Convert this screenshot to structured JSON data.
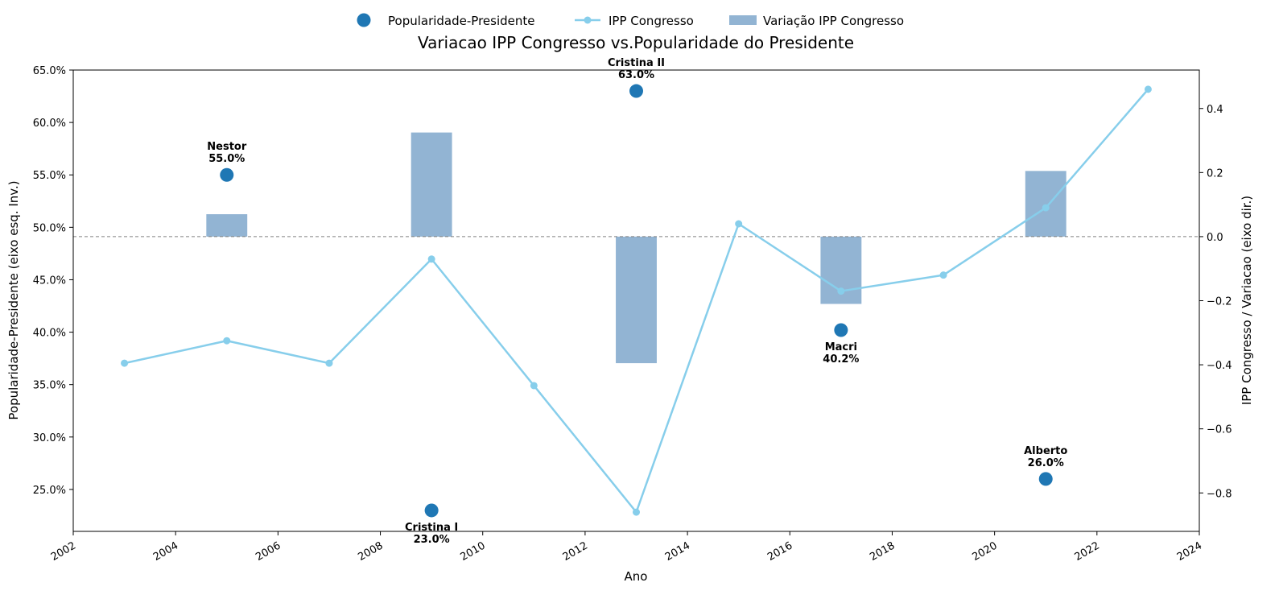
{
  "chart_data": {
    "type": "bar",
    "title": "Variacao IPP Congresso vs.Popularidade do Presidente",
    "xlabel": "Ano",
    "ylabel_left": "Popularidade-Presidente (eixo esq. Inv.)",
    "ylabel_right": "IPP Congresso / Variacao (eixo dir.)",
    "xlim": [
      2002,
      2024
    ],
    "ylim_left": [
      21.0,
      65.0
    ],
    "ylim_right": [
      -0.92,
      0.52
    ],
    "x_ticks": [
      {
        "value": 2002,
        "label": "2002"
      },
      {
        "value": 2004,
        "label": "2004"
      },
      {
        "value": 2006,
        "label": "2006"
      },
      {
        "value": 2008,
        "label": "2008"
      },
      {
        "value": 2010,
        "label": "2010"
      },
      {
        "value": 2012,
        "label": "2012"
      },
      {
        "value": 2014,
        "label": "2014"
      },
      {
        "value": 2016,
        "label": "2016"
      },
      {
        "value": 2018,
        "label": "2018"
      },
      {
        "value": 2020,
        "label": "2020"
      },
      {
        "value": 2022,
        "label": "2022"
      },
      {
        "value": 2024,
        "label": "2024"
      }
    ],
    "y_left_ticks": [
      {
        "value": 25,
        "label": "25.0%"
      },
      {
        "value": 30,
        "label": "30.0%"
      },
      {
        "value": 35,
        "label": "35.0%"
      },
      {
        "value": 40,
        "label": "40.0%"
      },
      {
        "value": 45,
        "label": "45.0%"
      },
      {
        "value": 50,
        "label": "50.0%"
      },
      {
        "value": 55,
        "label": "55.0%"
      },
      {
        "value": 60,
        "label": "60.0%"
      },
      {
        "value": 65,
        "label": "65.0%"
      }
    ],
    "y_right_ticks": [
      {
        "value": -0.8,
        "label": "−0.8"
      },
      {
        "value": -0.6,
        "label": "−0.6"
      },
      {
        "value": -0.4,
        "label": "−0.4"
      },
      {
        "value": -0.2,
        "label": "−0.2"
      },
      {
        "value": 0.0,
        "label": "0.0"
      },
      {
        "value": 0.2,
        "label": "0.2"
      },
      {
        "value": 0.4,
        "label": "0.4"
      }
    ],
    "legend": [
      {
        "name": "Popularidade-Presidente",
        "kind": "scatter",
        "color": "#1f77b4"
      },
      {
        "name": "IPP Congresso",
        "kind": "line",
        "color": "#87ceeb"
      },
      {
        "name": "Variação IPP Congresso",
        "kind": "bar",
        "color": "#92b4d3"
      }
    ],
    "legend_position": "top-center",
    "popularity_points": [
      {
        "x": 2005,
        "y": 55.0,
        "name": "Nestor",
        "label": "55.0%",
        "label_pos": "above"
      },
      {
        "x": 2009,
        "y": 23.0,
        "name": "Cristina I",
        "label": "23.0%",
        "label_pos": "below"
      },
      {
        "x": 2013,
        "y": 63.0,
        "name": "Cristina II",
        "label": "63.0%",
        "label_pos": "above"
      },
      {
        "x": 2017,
        "y": 40.2,
        "name": "Macri",
        "label": "40.2%",
        "label_pos": "below"
      },
      {
        "x": 2021,
        "y": 26.0,
        "name": "Alberto",
        "label": "26.0%",
        "label_pos": "above"
      }
    ],
    "ipp_line": {
      "x": [
        2003,
        2005,
        2007,
        2009,
        2011,
        2013,
        2015,
        2017,
        2019,
        2021,
        2023
      ],
      "y": [
        -0.395,
        -0.325,
        -0.395,
        -0.07,
        -0.465,
        -0.86,
        0.04,
        -0.17,
        -0.12,
        0.09,
        0.46
      ]
    },
    "ipp_variation_bars": [
      {
        "x": 2005,
        "value": 0.07
      },
      {
        "x": 2009,
        "value": 0.325
      },
      {
        "x": 2013,
        "value": -0.395
      },
      {
        "x": 2017,
        "value": -0.21
      },
      {
        "x": 2021,
        "value": 0.205
      }
    ],
    "reference_line_right": 0.0,
    "grid": false,
    "colors": {
      "scatter": "#1f77b4",
      "line": "#87ceeb",
      "bar": "#92b4d3",
      "reference": "#808080"
    }
  }
}
